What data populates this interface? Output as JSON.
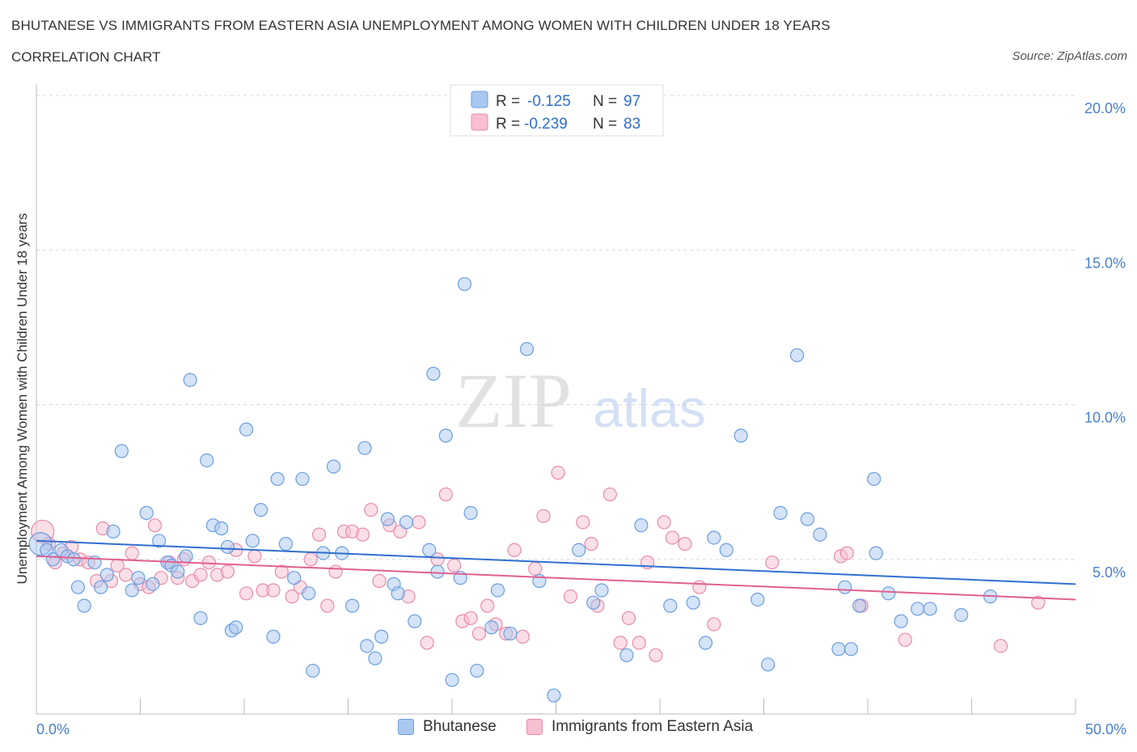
{
  "title": "BHUTANESE VS IMMIGRANTS FROM EASTERN ASIA UNEMPLOYMENT AMONG WOMEN WITH CHILDREN UNDER 18 YEARS",
  "subtitle": "CORRELATION CHART",
  "source": "Source: ZipAtlas.com",
  "watermark": {
    "zip": "ZIP",
    "atlas": "atlas"
  },
  "legend_top": {
    "rows": [
      {
        "r_label": "R =",
        "r_value": "-0.125",
        "n_label": "N =",
        "n_value": "97"
      },
      {
        "r_label": "R =",
        "r_value": "-0.239",
        "n_label": "N =",
        "n_value": "83"
      }
    ]
  },
  "legend_bottom": {
    "series1": "Bhutanese",
    "series2": "Immigrants from Eastern Asia"
  },
  "colors": {
    "blue_fill": "#a9c8f0",
    "blue_stroke": "#6a9ee0",
    "blue_line": "#2f6fd0",
    "pink_fill": "#f7bfd0",
    "pink_stroke": "#e98aaa",
    "pink_line": "#e06090",
    "tick": "#4a7fd0",
    "grid": "#d9d9d9"
  },
  "chart_data": {
    "type": "scatter",
    "title": "BHUTANESE VS IMMIGRANTS FROM EASTERN ASIA UNEMPLOYMENT AMONG WOMEN WITH CHILDREN UNDER 18 YEARS",
    "ylabel": "Unemployment Among Women with Children Under 18 years",
    "xlabel": "",
    "xlim": [
      0,
      50
    ],
    "ylim": [
      0,
      20
    ],
    "x_tick_labels": [
      {
        "value": 0,
        "label": "0.0%"
      },
      {
        "value": 50,
        "label": "50.0%"
      }
    ],
    "y_tick_labels": [
      {
        "value": 5,
        "label": "5.0%"
      },
      {
        "value": 10,
        "label": "10.0%"
      },
      {
        "value": 15,
        "label": "15.0%"
      },
      {
        "value": 20,
        "label": "20.0%"
      }
    ],
    "grid": true,
    "legend_placement": "top-center",
    "series": [
      {
        "name": "Bhutanese",
        "R": -0.125,
        "N": 97,
        "trend": {
          "x": [
            0,
            50
          ],
          "y": [
            5.6,
            4.2
          ]
        },
        "points": [
          [
            0.2,
            5.5
          ],
          [
            0.5,
            5.3
          ],
          [
            0.8,
            5.0
          ],
          [
            1.2,
            5.3
          ],
          [
            1.5,
            5.1
          ],
          [
            1.8,
            5.0
          ],
          [
            2.0,
            4.1
          ],
          [
            2.3,
            3.5
          ],
          [
            2.8,
            4.9
          ],
          [
            3.1,
            4.1
          ],
          [
            3.4,
            4.5
          ],
          [
            3.7,
            5.9
          ],
          [
            4.1,
            8.5
          ],
          [
            4.6,
            4.0
          ],
          [
            4.9,
            4.4
          ],
          [
            5.3,
            6.5
          ],
          [
            5.6,
            4.2
          ],
          [
            5.9,
            5.6
          ],
          [
            6.3,
            4.9
          ],
          [
            6.5,
            4.8
          ],
          [
            6.8,
            4.6
          ],
          [
            7.2,
            5.1
          ],
          [
            7.4,
            10.8
          ],
          [
            7.9,
            3.1
          ],
          [
            8.2,
            8.2
          ],
          [
            8.5,
            6.1
          ],
          [
            8.9,
            6.0
          ],
          [
            9.2,
            5.4
          ],
          [
            9.4,
            2.7
          ],
          [
            9.6,
            2.8
          ],
          [
            10.1,
            9.2
          ],
          [
            10.4,
            5.6
          ],
          [
            10.8,
            6.6
          ],
          [
            11.4,
            2.5
          ],
          [
            11.6,
            7.6
          ],
          [
            12.0,
            5.5
          ],
          [
            12.4,
            4.4
          ],
          [
            12.8,
            7.6
          ],
          [
            13.1,
            3.9
          ],
          [
            13.3,
            1.4
          ],
          [
            13.8,
            5.2
          ],
          [
            14.3,
            8.0
          ],
          [
            14.7,
            5.2
          ],
          [
            15.2,
            3.5
          ],
          [
            15.8,
            8.6
          ],
          [
            15.9,
            2.2
          ],
          [
            16.3,
            1.8
          ],
          [
            16.6,
            2.5
          ],
          [
            16.9,
            6.3
          ],
          [
            17.2,
            4.2
          ],
          [
            17.4,
            3.9
          ],
          [
            17.8,
            6.2
          ],
          [
            18.2,
            3.0
          ],
          [
            18.9,
            5.3
          ],
          [
            19.1,
            11.0
          ],
          [
            19.3,
            4.6
          ],
          [
            19.7,
            9.0
          ],
          [
            20.0,
            1.1
          ],
          [
            20.4,
            4.4
          ],
          [
            20.6,
            13.9
          ],
          [
            20.9,
            6.5
          ],
          [
            21.2,
            1.4
          ],
          [
            21.9,
            2.8
          ],
          [
            22.2,
            4.0
          ],
          [
            22.8,
            2.6
          ],
          [
            23.6,
            11.8
          ],
          [
            24.2,
            4.3
          ],
          [
            24.9,
            0.6
          ],
          [
            26.1,
            5.3
          ],
          [
            26.8,
            3.6
          ],
          [
            27.2,
            4.0
          ],
          [
            28.4,
            1.9
          ],
          [
            29.1,
            6.1
          ],
          [
            30.5,
            3.5
          ],
          [
            31.6,
            3.6
          ],
          [
            32.2,
            2.3
          ],
          [
            32.6,
            5.7
          ],
          [
            33.2,
            5.3
          ],
          [
            33.9,
            9.0
          ],
          [
            34.7,
            3.7
          ],
          [
            35.2,
            1.6
          ],
          [
            35.8,
            6.5
          ],
          [
            36.6,
            11.6
          ],
          [
            37.1,
            6.3
          ],
          [
            37.7,
            5.8
          ],
          [
            38.6,
            2.1
          ],
          [
            38.9,
            4.1
          ],
          [
            39.2,
            2.1
          ],
          [
            39.6,
            3.5
          ],
          [
            40.3,
            7.6
          ],
          [
            40.4,
            5.2
          ],
          [
            41.0,
            3.9
          ],
          [
            41.6,
            3.0
          ],
          [
            42.4,
            3.4
          ],
          [
            43.0,
            3.4
          ],
          [
            44.5,
            3.2
          ],
          [
            45.9,
            3.8
          ]
        ]
      },
      {
        "name": "Immigrants from Eastern Asia",
        "R": -0.239,
        "N": 83,
        "trend": {
          "x": [
            0,
            50
          ],
          "y": [
            5.1,
            3.7
          ]
        },
        "points": [
          [
            0.3,
            5.9
          ],
          [
            0.6,
            5.5
          ],
          [
            0.9,
            4.9
          ],
          [
            1.3,
            5.2
          ],
          [
            1.7,
            5.4
          ],
          [
            2.1,
            5.0
          ],
          [
            2.5,
            4.9
          ],
          [
            2.9,
            4.3
          ],
          [
            3.2,
            6.0
          ],
          [
            3.6,
            4.3
          ],
          [
            3.9,
            4.8
          ],
          [
            4.3,
            4.5
          ],
          [
            4.6,
            5.2
          ],
          [
            5.0,
            4.2
          ],
          [
            5.4,
            4.1
          ],
          [
            5.7,
            6.1
          ],
          [
            6.0,
            4.4
          ],
          [
            6.4,
            4.9
          ],
          [
            6.8,
            4.4
          ],
          [
            7.1,
            5.0
          ],
          [
            7.5,
            4.3
          ],
          [
            7.9,
            4.5
          ],
          [
            8.3,
            4.9
          ],
          [
            8.7,
            4.5
          ],
          [
            9.2,
            4.6
          ],
          [
            9.6,
            5.3
          ],
          [
            10.1,
            3.9
          ],
          [
            10.5,
            5.1
          ],
          [
            10.9,
            4.0
          ],
          [
            11.4,
            4.0
          ],
          [
            11.8,
            4.6
          ],
          [
            12.3,
            3.8
          ],
          [
            12.7,
            4.1
          ],
          [
            13.2,
            5.0
          ],
          [
            13.6,
            5.8
          ],
          [
            14.0,
            3.5
          ],
          [
            14.4,
            4.6
          ],
          [
            14.8,
            5.9
          ],
          [
            15.2,
            5.9
          ],
          [
            15.7,
            5.8
          ],
          [
            16.1,
            6.6
          ],
          [
            16.5,
            4.3
          ],
          [
            17.0,
            6.1
          ],
          [
            17.5,
            5.9
          ],
          [
            17.9,
            3.8
          ],
          [
            18.4,
            6.2
          ],
          [
            18.8,
            2.3
          ],
          [
            19.3,
            5.0
          ],
          [
            19.7,
            7.1
          ],
          [
            20.1,
            4.8
          ],
          [
            20.5,
            3.0
          ],
          [
            20.9,
            3.1
          ],
          [
            21.3,
            2.6
          ],
          [
            21.7,
            3.5
          ],
          [
            22.1,
            2.9
          ],
          [
            22.6,
            2.6
          ],
          [
            23.0,
            5.3
          ],
          [
            23.4,
            2.5
          ],
          [
            24.0,
            4.7
          ],
          [
            24.4,
            6.4
          ],
          [
            25.1,
            7.8
          ],
          [
            25.7,
            3.8
          ],
          [
            26.3,
            6.2
          ],
          [
            26.7,
            5.5
          ],
          [
            27.0,
            3.5
          ],
          [
            27.6,
            7.1
          ],
          [
            28.1,
            2.3
          ],
          [
            28.5,
            3.1
          ],
          [
            29.0,
            2.3
          ],
          [
            29.4,
            4.9
          ],
          [
            29.8,
            1.9
          ],
          [
            30.2,
            6.2
          ],
          [
            30.6,
            5.7
          ],
          [
            31.2,
            5.5
          ],
          [
            31.9,
            4.1
          ],
          [
            32.6,
            2.9
          ],
          [
            35.4,
            4.9
          ],
          [
            38.7,
            5.1
          ],
          [
            39.0,
            5.2
          ],
          [
            39.7,
            3.5
          ],
          [
            41.8,
            2.4
          ],
          [
            46.4,
            2.2
          ],
          [
            48.2,
            3.6
          ]
        ]
      }
    ]
  }
}
